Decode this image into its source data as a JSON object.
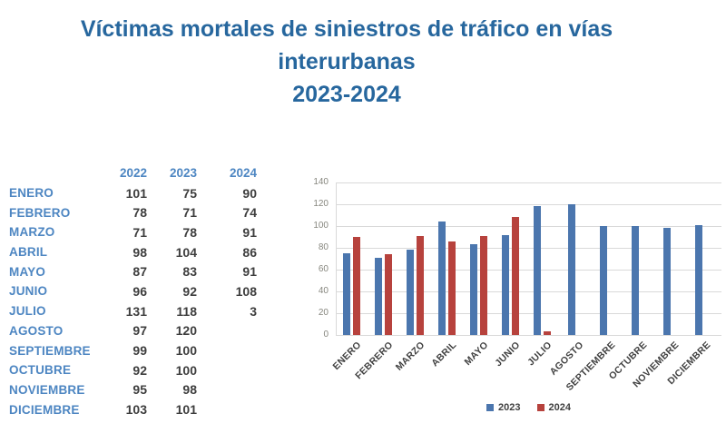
{
  "title": {
    "line1": "Víctimas mortales de siniestros de tráfico en vías",
    "line2": "interurbanas",
    "line3": "2023-2024"
  },
  "table": {
    "headers": [
      "2022",
      "2023",
      "2024"
    ],
    "rows": [
      {
        "month": "ENERO",
        "y2022": "101",
        "y2023": "75",
        "y2024": "90"
      },
      {
        "month": "FEBRERO",
        "y2022": "78",
        "y2023": "71",
        "y2024": "74"
      },
      {
        "month": "MARZO",
        "y2022": "71",
        "y2023": "78",
        "y2024": "91"
      },
      {
        "month": "ABRIL",
        "y2022": "98",
        "y2023": "104",
        "y2024": "86"
      },
      {
        "month": "MAYO",
        "y2022": "87",
        "y2023": "83",
        "y2024": "91"
      },
      {
        "month": "JUNIO",
        "y2022": "96",
        "y2023": "92",
        "y2024": "108"
      },
      {
        "month": "JULIO",
        "y2022": "131",
        "y2023": "118",
        "y2024": "3"
      },
      {
        "month": "AGOSTO",
        "y2022": "97",
        "y2023": "120",
        "y2024": ""
      },
      {
        "month": "SEPTIEMBRE",
        "y2022": "99",
        "y2023": "100",
        "y2024": ""
      },
      {
        "month": "OCTUBRE",
        "y2022": "92",
        "y2023": "100",
        "y2024": ""
      },
      {
        "month": "NOVIEMBRE",
        "y2022": "95",
        "y2023": "98",
        "y2024": ""
      },
      {
        "month": "DICIEMBRE",
        "y2022": "103",
        "y2023": "101",
        "y2024": ""
      }
    ]
  },
  "chart_data": {
    "type": "bar",
    "categories": [
      "ENERO",
      "FEBRERO",
      "MARZO",
      "ABRIL",
      "MAYO",
      "JUNIO",
      "JULIO",
      "AGOSTO",
      "SEPTIEMBRE",
      "OCTUBRE",
      "NOVIEMBRE",
      "DICIEMBRE"
    ],
    "series": [
      {
        "name": "2023",
        "color": "#4b76ae",
        "values": [
          75,
          71,
          78,
          104,
          83,
          92,
          118,
          120,
          100,
          100,
          98,
          101
        ]
      },
      {
        "name": "2024",
        "color": "#b7423d",
        "values": [
          90,
          74,
          91,
          86,
          91,
          108,
          3,
          null,
          null,
          null,
          null,
          null
        ]
      }
    ],
    "title": "",
    "xlabel": "",
    "ylabel": "",
    "ylim": [
      0,
      140
    ],
    "yticks": [
      0,
      20,
      40,
      60,
      80,
      100,
      120,
      140
    ],
    "grid": true,
    "legend_position": "bottom"
  },
  "colors": {
    "title_blue": "#27679e",
    "label_blue": "#4d86c2",
    "number_text": "#3d3d3d",
    "series_2023": "#4b76ae",
    "series_2024": "#b7423d",
    "gridline": "#d9d9d9"
  }
}
